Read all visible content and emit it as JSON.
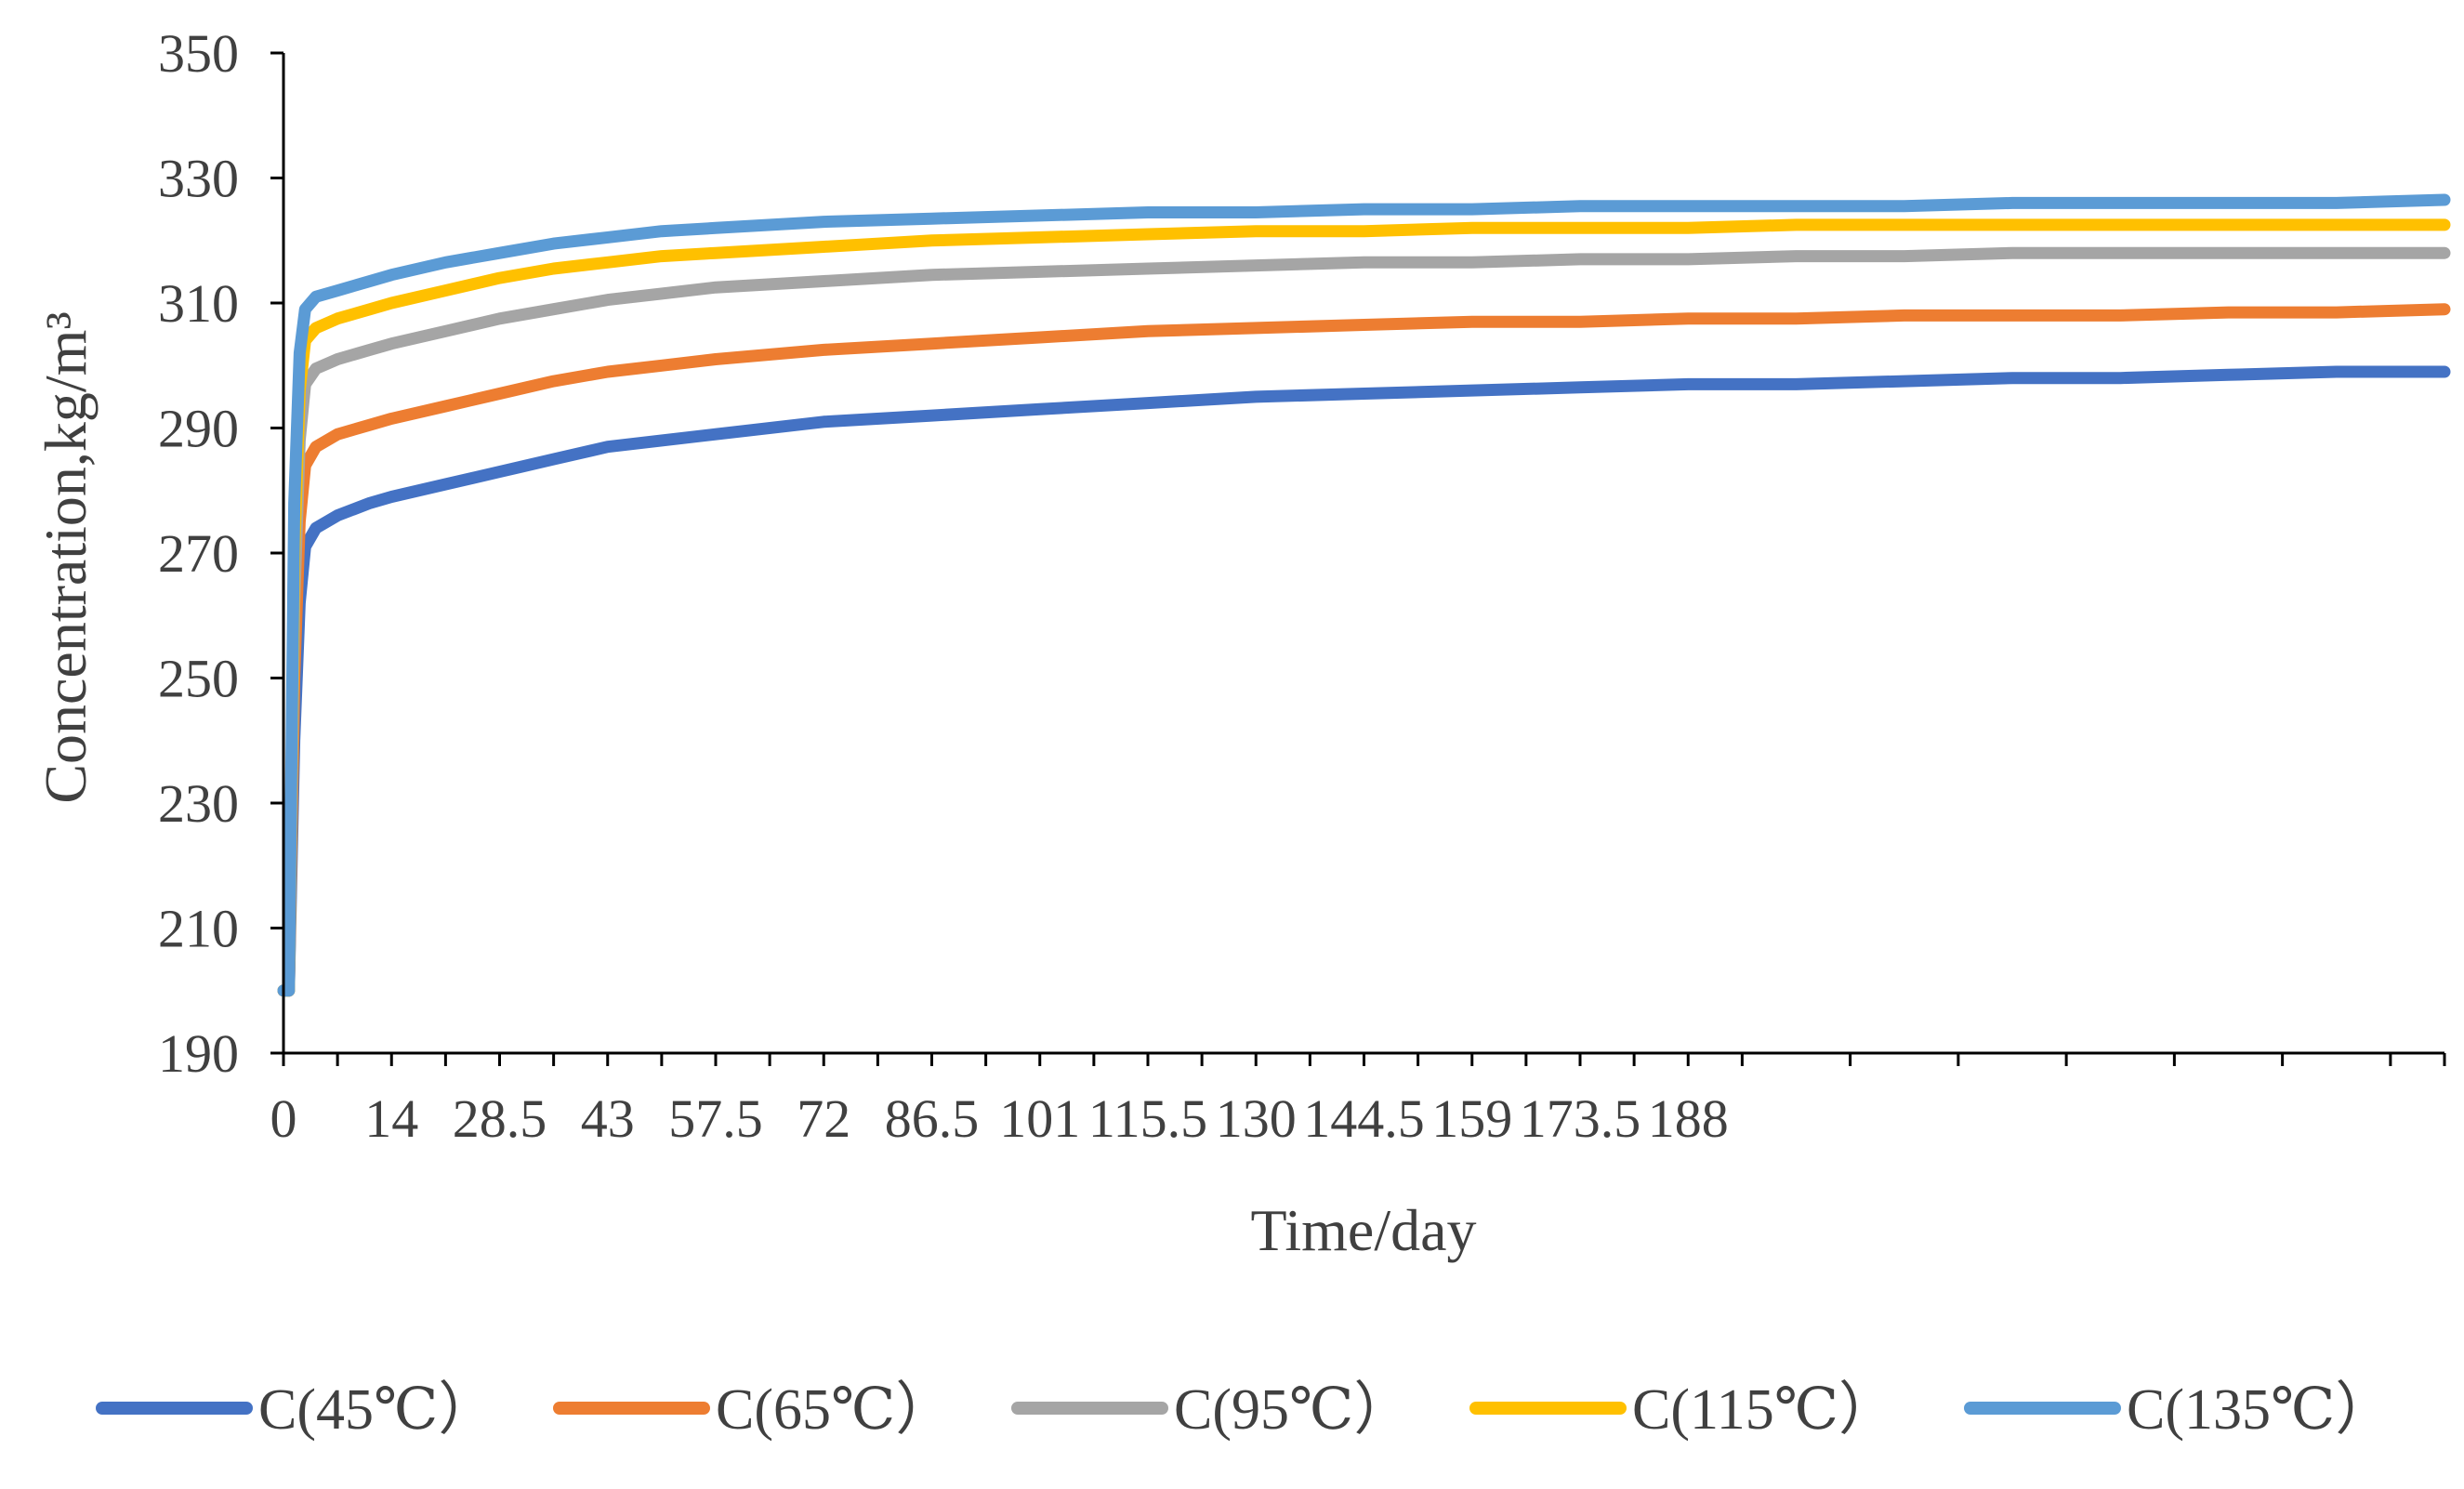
{
  "chart_data": {
    "type": "line",
    "title": "",
    "xlabel": "Time/day",
    "ylabel": "Concentration,kg/m³",
    "xlim": [
      0,
      200
    ],
    "ylim": [
      190,
      350
    ],
    "yticks": [
      190,
      210,
      230,
      250,
      270,
      290,
      310,
      330,
      350
    ],
    "xtick_labels": [
      "0",
      "14",
      "28.5",
      "43",
      "57.5",
      "72",
      "86.5",
      "101",
      "115.5",
      "130",
      "144.5",
      "159",
      "173.5",
      "188"
    ],
    "xtick_values": [
      0,
      10,
      20,
      30,
      40,
      50,
      60,
      70,
      80,
      90,
      100,
      110,
      120,
      130
    ],
    "grid": false,
    "legend_position": "bottom",
    "series": [
      {
        "name": "C(45℃）",
        "color": "#4472C4",
        "x": [
          0,
          0.5,
          1,
          1.5,
          2,
          3,
          5,
          8,
          10,
          15,
          20,
          25,
          30,
          35,
          40,
          50,
          60,
          70,
          80,
          90,
          100,
          110,
          120,
          130,
          140,
          150,
          160,
          170,
          180,
          190,
          200
        ],
        "y": [
          200,
          200,
          240,
          262,
          271,
          274,
          276,
          278,
          279,
          281,
          283,
          285,
          287,
          288,
          289,
          291,
          292,
          293,
          294,
          295,
          295.5,
          296,
          296.5,
          297,
          297,
          297.5,
          298,
          298,
          298.5,
          299,
          299
        ]
      },
      {
        "name": "C(65℃）",
        "color": "#ED7D31",
        "x": [
          0,
          0.5,
          1,
          1.5,
          2,
          3,
          5,
          8,
          10,
          15,
          20,
          25,
          30,
          35,
          40,
          50,
          60,
          70,
          80,
          90,
          100,
          110,
          120,
          130,
          140,
          150,
          160,
          170,
          180,
          190,
          200
        ],
        "y": [
          200,
          200,
          250,
          275,
          284,
          287,
          289,
          290.5,
          291.5,
          293.5,
          295.5,
          297.5,
          299,
          300,
          301,
          302.5,
          303.5,
          304.5,
          305.5,
          306,
          306.5,
          307,
          307,
          307.5,
          307.5,
          308,
          308,
          308,
          308.5,
          308.5,
          309
        ]
      },
      {
        "name": "C(95℃）",
        "color": "#A5A5A5",
        "x": [
          0,
          0.5,
          1,
          1.5,
          2,
          3,
          5,
          8,
          10,
          15,
          20,
          25,
          30,
          35,
          40,
          50,
          60,
          70,
          80,
          90,
          100,
          110,
          120,
          130,
          140,
          150,
          160,
          170,
          180,
          190,
          200
        ],
        "y": [
          200,
          200,
          262,
          288,
          297,
          299.5,
          301,
          302.5,
          303.5,
          305.5,
          307.5,
          309,
          310.5,
          311.5,
          312.5,
          313.5,
          314.5,
          315,
          315.5,
          316,
          316.5,
          316.5,
          317,
          317,
          317.5,
          317.5,
          318,
          318,
          318,
          318,
          318
        ]
      },
      {
        "name": "C(115℃）",
        "color": "#FFC000",
        "x": [
          0,
          0.5,
          1,
          1.5,
          2,
          3,
          5,
          8,
          10,
          15,
          20,
          25,
          30,
          35,
          40,
          50,
          60,
          70,
          80,
          90,
          100,
          110,
          120,
          130,
          140,
          150,
          160,
          170,
          180,
          190,
          200
        ],
        "y": [
          200,
          200,
          270,
          296,
          304,
          306,
          307.5,
          309,
          310,
          312,
          314,
          315.5,
          316.5,
          317.5,
          318,
          319,
          320,
          320.5,
          321,
          321.5,
          321.5,
          322,
          322,
          322,
          322.5,
          322.5,
          322.5,
          322.5,
          322.5,
          322.5,
          322.5
        ]
      },
      {
        "name": "C(135℃）",
        "color": "#5B9BD5",
        "x": [
          0,
          0.5,
          1,
          1.5,
          2,
          3,
          5,
          8,
          10,
          15,
          20,
          25,
          30,
          35,
          40,
          50,
          60,
          70,
          80,
          90,
          100,
          110,
          120,
          130,
          140,
          150,
          160,
          170,
          180,
          190,
          200
        ],
        "y": [
          200,
          200,
          278,
          302,
          309,
          311,
          312,
          313.5,
          314.5,
          316.5,
          318,
          319.5,
          320.5,
          321.5,
          322,
          323,
          323.5,
          324,
          324.5,
          324.5,
          325,
          325,
          325.5,
          325.5,
          325.5,
          325.5,
          326,
          326,
          326,
          326,
          326.5
        ]
      }
    ]
  }
}
